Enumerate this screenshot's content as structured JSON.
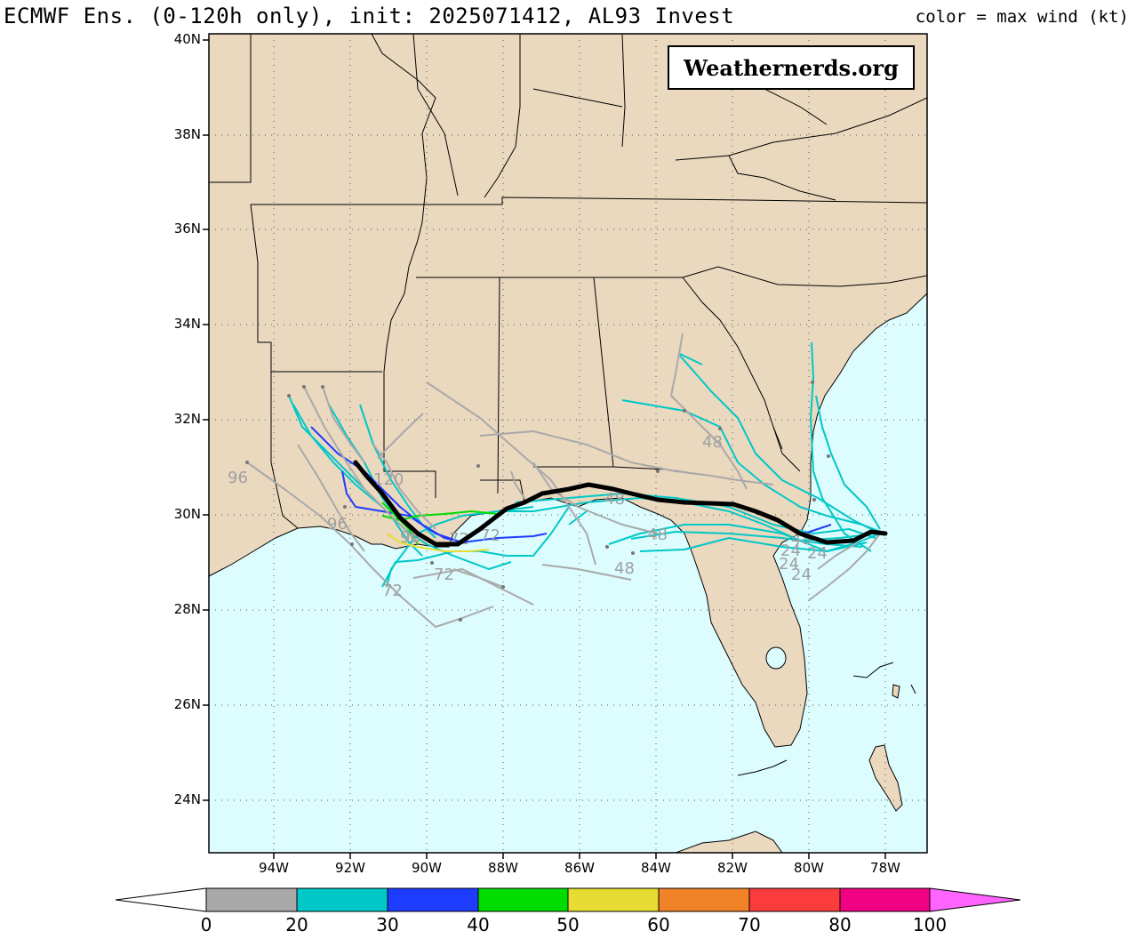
{
  "header": {
    "title": "ECMWF Ens. (0-120h only), init: 2025071412, AL93 Invest",
    "color_note": "color = max wind (kt)"
  },
  "watermark": "Weathernerds.org",
  "map": {
    "lat_ticks": [
      "24N",
      "26N",
      "28N",
      "30N",
      "32N",
      "34N",
      "36N",
      "38N",
      "40N"
    ],
    "lon_ticks": [
      "94W",
      "92W",
      "90W",
      "88W",
      "86W",
      "84W",
      "82W",
      "80W",
      "78W"
    ],
    "colors": {
      "land": "#ead8bf",
      "ocean": "#dcfcfd",
      "ensemble_mean": "#000000"
    },
    "hour_labels": [
      "96",
      "120",
      "96",
      "96",
      "72",
      "72",
      "72",
      "72",
      "48",
      "48",
      "48",
      "48",
      "48",
      "24",
      "24",
      "24",
      "24"
    ]
  },
  "colorbar": {
    "ticks": [
      "0",
      "20",
      "30",
      "40",
      "50",
      "60",
      "70",
      "80",
      "100"
    ],
    "colors": [
      "#a9a9a9",
      "#00c8c8",
      "#1e3cff",
      "#00dc00",
      "#e6dc32",
      "#f08228",
      "#fa3c3c",
      "#f00082",
      "#ff64ff"
    ]
  }
}
